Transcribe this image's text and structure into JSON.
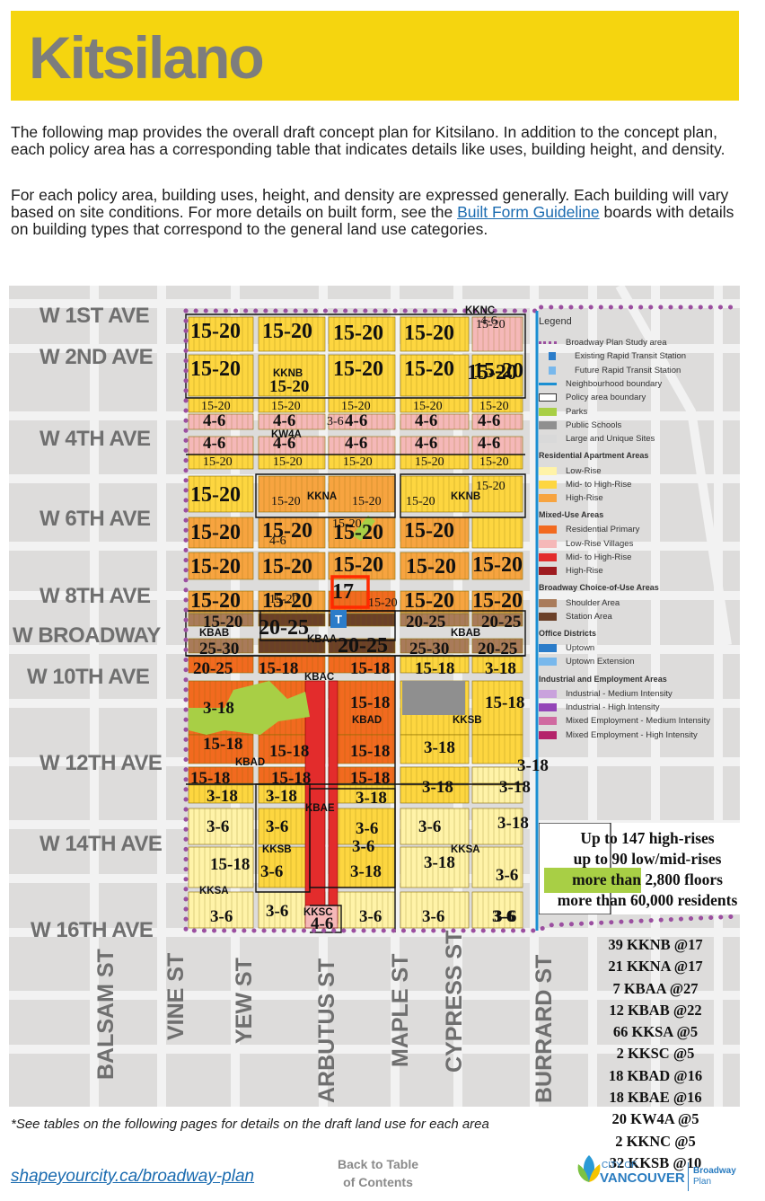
{
  "header": {
    "title": "Kitsilano"
  },
  "intro": {
    "p1": "The following map provides the overall draft concept plan for Kitsilano. In addition to the concept plan, each policy area has a corresponding table that indicates details like uses, building height, and density.",
    "p2_before": "For each policy area, building uses, height, and density are expressed generally. Each building will vary based on site conditions. For more details on built form, see the ",
    "p2_link": "Built Form Guideline",
    "p2_after": " boards with details on building types that correspond to the general land use categories."
  },
  "streets": {
    "avenues": [
      "W 1ST AVE",
      "W 2ND AVE",
      "W 4TH AVE",
      "W 6TH AVE",
      "W 8TH AVE",
      "W BROADWAY",
      "W 10TH AVE",
      "W 12TH AVE",
      "W 14TH AVE",
      "W 16TH AVE"
    ],
    "cross": [
      "BALSAM ST",
      "VINE ST",
      "YEW ST",
      "ARBUTUS ST",
      "MAPLE ST",
      "CYPRESS ST",
      "BURRARD ST"
    ]
  },
  "map_labels": {
    "height_labels": [
      "15-20",
      "15-20",
      "15-20",
      "15-20",
      "15-20",
      "15-20",
      "15-20",
      "15-20",
      "15-20",
      "15-20",
      "4-6",
      "4-6",
      "4-6",
      "4-6",
      "4-6",
      "4-6",
      "4-6",
      "4-6",
      "4-6",
      "4-6",
      "4-6",
      "15-20",
      "15-20",
      "15-20",
      "15-20",
      "15-20",
      "15-20",
      "15-20",
      "15-20",
      "15-20",
      "15-20",
      "15-20",
      "15-20",
      "15-20",
      "15-20",
      "15-20",
      "15-20",
      "15-20",
      "15-20",
      "15-20",
      "15-20",
      "15-20",
      "15-20",
      "15-20",
      "15-20",
      "15-20",
      "17",
      "15-20",
      "15-20",
      "15-20",
      "15-20",
      "15-20",
      "20-25",
      "20-25",
      "20-25",
      "25-30",
      "20-25",
      "25-30",
      "20-25",
      "20-25",
      "15-18",
      "15-18",
      "15-18",
      "3-18",
      "3-18",
      "15-18",
      "15-18",
      "3-18",
      "15-18",
      "15-18",
      "15-18",
      "3-18",
      "15-18",
      "15-18",
      "15-18",
      "3-18",
      "3-18",
      "3-18",
      "3-18",
      "3-6",
      "3-18",
      "3-6",
      "3-18",
      "3-6",
      "3-6",
      "3-6",
      "15-18",
      "3-6",
      "3-18",
      "3-18",
      "3-6",
      "3-6",
      "3-6",
      "3-6",
      "3-6",
      "3-6",
      "3-6",
      "4-6",
      "3-6",
      "4-6",
      "15-20",
      "15-20",
      "15-20"
    ],
    "area_codes": [
      "KKNC",
      "KKNB",
      "KW4A",
      "KKNA",
      "KKNB",
      "KBAB",
      "KBAA",
      "KBAB",
      "KBAC",
      "KBAD",
      "KKSB",
      "KBAD",
      "KBAE",
      "KKSB",
      "KKSA",
      "KKSA",
      "KKSC"
    ],
    "station": "T"
  },
  "legend": {
    "title": "Legend",
    "items_top": [
      {
        "label": "Broadway Plan Study area"
      },
      {
        "label": "Existing Rapid Transit Station"
      },
      {
        "label": "Future Rapid Transit Station"
      },
      {
        "label": "Neighbourhood boundary"
      },
      {
        "label": "Policy area boundary"
      },
      {
        "label": "Parks"
      },
      {
        "label": "Public Schools"
      },
      {
        "label": "Large and Unique Sites"
      }
    ],
    "sections": [
      {
        "title": "Residential Apartment Areas",
        "items": [
          {
            "label": "Low-Rise",
            "color": "#fff3a8"
          },
          {
            "label": "Mid- to High-Rise",
            "color": "#fdd640"
          },
          {
            "label": "High-Rise",
            "color": "#f7a440"
          }
        ]
      },
      {
        "title": "Mixed-Use Areas",
        "items": [
          {
            "label": "Residential Primary",
            "color": "#f26a1f"
          },
          {
            "label": "Low-Rise Villages",
            "color": "#f5b8b8"
          },
          {
            "label": "Mid- to High-Rise",
            "color": "#e32c2c"
          },
          {
            "label": "High-Rise",
            "color": "#9e1b20"
          }
        ]
      },
      {
        "title": "Broadway Choice-of-Use Areas",
        "items": [
          {
            "label": "Shoulder Area",
            "color": "#a97b5a"
          },
          {
            "label": "Station Area",
            "color": "#6b4028"
          }
        ]
      },
      {
        "title": "Office Districts",
        "items": [
          {
            "label": "Uptown",
            "color": "#2b7cc9"
          },
          {
            "label": "Uptown Extension",
            "color": "#78b8ec"
          }
        ]
      },
      {
        "title": "Industrial and Employment Areas",
        "items": [
          {
            "label": "Industrial - Medium Intensity",
            "color": "#c9a2dc"
          },
          {
            "label": "Industrial - High Intensity",
            "color": "#9446b8"
          },
          {
            "label": "Mixed Employment - Medium Intensity",
            "color": "#d06aa0"
          },
          {
            "label": "Mixed Employment - High Intensity",
            "color": "#b4236a"
          }
        ]
      }
    ]
  },
  "stats": [
    "Up to 147 high-rises",
    "up to 90 low/mid-rises",
    "more than 2,800 floors",
    "more than 60,000 residents"
  ],
  "counts": [
    "39 KKNB @17",
    "21 KKNA @17",
    "7 KBAA @27",
    "12 KBAB @22",
    "66 KKSA @5",
    "2 KKSC @5",
    "18 KBAD @16",
    "18 KBAE @16",
    "20 KW4A @5",
    "2 KKNC @5",
    "32 KKSB @10"
  ],
  "footer": {
    "footnote": "*See tables on the following pages for details on the draft land use for each area",
    "link": "shapeyourcity.ca/broadway-plan",
    "back_line1": "Back to Table",
    "back_line2": "of Contents",
    "logo_city": "CITY OF",
    "logo_name": "VANCOUVER",
    "logo_plan1": "Broadway",
    "logo_plan2": "Plan"
  },
  "colors": {
    "banner": "#f5d50f",
    "mid_high_rise": "#fdd640",
    "high_rise": "#f7a440",
    "residential_primary": "#f26a1f",
    "low_rise_village": "#f5b8b8",
    "mixed_mid_high": "#e32c2c",
    "shoulder": "#a97b5a",
    "station": "#6b4028",
    "park": "#a8cf45",
    "school": "#8f8f8f",
    "study_area": "#9b4fa0",
    "neighbourhood_boundary": "#1b8fd2"
  }
}
